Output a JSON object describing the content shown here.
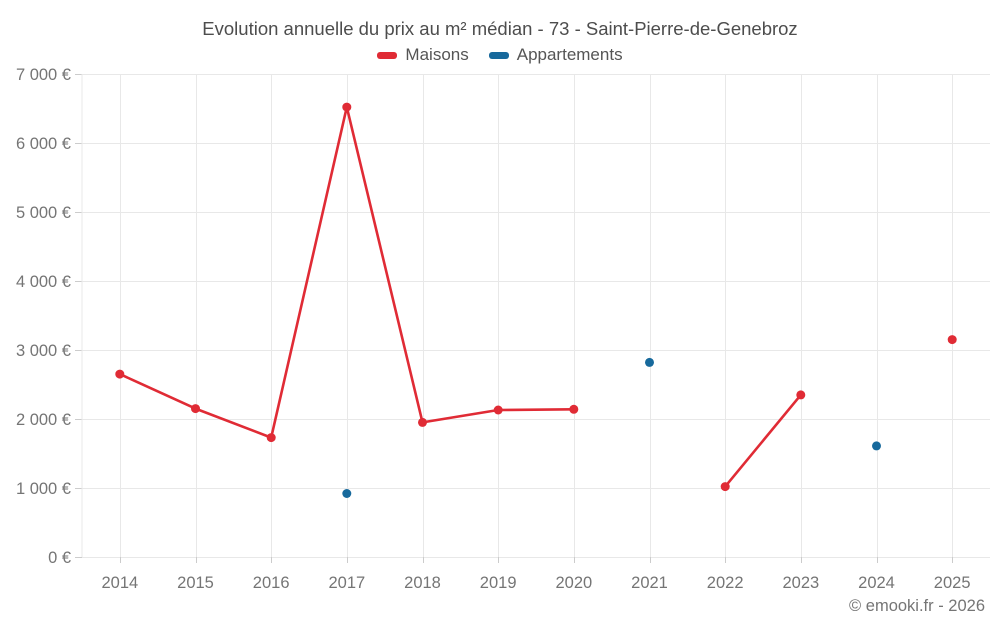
{
  "title": "Evolution annuelle du prix au m² médian - 73 - Saint-Pierre-de-Genebroz",
  "footer": "© emooki.fr - 2026",
  "chart_data": {
    "type": "line",
    "title": "Evolution annuelle du prix au m² médian - 73 - Saint-Pierre-de-Genebroz",
    "categories": [
      "2014",
      "2015",
      "2016",
      "2017",
      "2018",
      "2019",
      "2020",
      "2021",
      "2022",
      "2023",
      "2024",
      "2025"
    ],
    "series": [
      {
        "name": "Maisons",
        "color": "#e02b35",
        "values": [
          2650,
          2150,
          1730,
          6520,
          1950,
          2130,
          2140,
          null,
          1020,
          2350,
          null,
          3150
        ]
      },
      {
        "name": "Appartements",
        "color": "#17699c",
        "values": [
          null,
          null,
          null,
          920,
          null,
          null,
          null,
          2820,
          null,
          null,
          1610,
          null
        ]
      }
    ],
    "ylim": [
      0,
      7000
    ],
    "ytick_step": 1000,
    "ytick_suffix": "€",
    "grid": true,
    "legend_position": "top",
    "gridline_color": "#e8e8e8",
    "tick_color": "#cccccc"
  }
}
